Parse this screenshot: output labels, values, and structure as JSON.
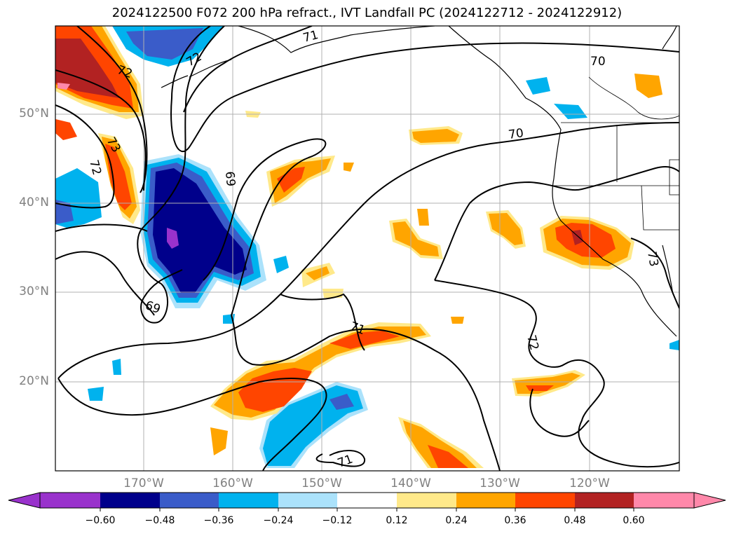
{
  "title": "2024122500 F072 200 hPa refract., IVT Landfall PC (2024122712 - 2024122912)",
  "map": {
    "lat_labels": [
      "50°N",
      "40°N",
      "30°N",
      "20°N"
    ],
    "lon_labels": [
      "170°W",
      "160°W",
      "150°W",
      "140°W",
      "130°W",
      "120°W"
    ],
    "contour_labels": [
      "72",
      "71",
      "72",
      "70",
      "73",
      "72",
      "69",
      "70",
      "69",
      "71",
      "72",
      "71",
      "73"
    ],
    "shading_colors": {
      "deep_purple": "#9932cc",
      "navy": "#00008b",
      "royal_blue": "#3a5cc9",
      "sky_blue": "#00b2ee",
      "light_blue": "#abe2fb",
      "light_yellow": "#ffe98a",
      "orange": "#ffa500",
      "red_orange": "#ff4500",
      "firebrick": "#b22222",
      "pink": "#ff88aa"
    }
  },
  "colorbar": {
    "ticks": [
      "−0.60",
      "−0.48",
      "−0.36",
      "−0.24",
      "−0.12",
      "0.12",
      "0.24",
      "0.36",
      "0.48",
      "0.60"
    ],
    "colors": [
      "#9932cc",
      "#00008b",
      "#3a5cc9",
      "#00b2ee",
      "#abe2fb",
      "#ffffff",
      "#ffe98a",
      "#ffa500",
      "#ff4500",
      "#b22222",
      "#ff88aa"
    ]
  }
}
